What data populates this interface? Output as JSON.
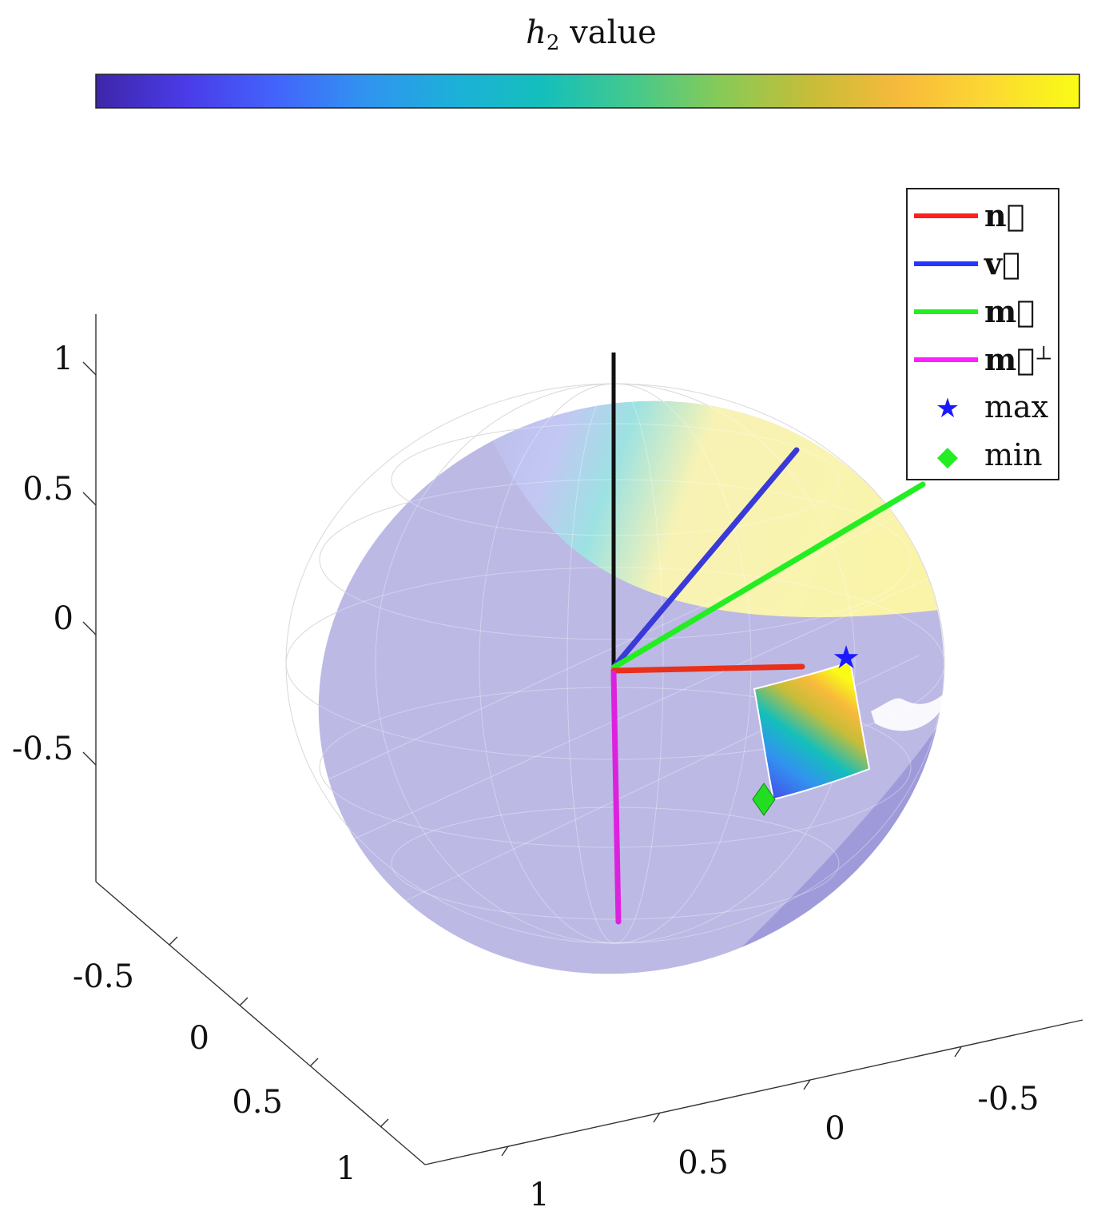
{
  "colorbar": {
    "title_var": "h",
    "title_sub": "2",
    "title_rest": " value",
    "colormap": [
      "#3e26a8",
      "#4a3be8",
      "#4363fc",
      "#3193f0",
      "#1cb0d9",
      "#14bfbb",
      "#44c98d",
      "#88ca56",
      "#c7bd38",
      "#f8ba3c",
      "#fcd932",
      "#f9fb15"
    ]
  },
  "legend": {
    "items": [
      {
        "label": "n⃗",
        "color": "#ff2020",
        "kind": "line",
        "bold": true,
        "sup": ""
      },
      {
        "label": "v⃗",
        "color": "#2536ff",
        "kind": "line",
        "bold": true,
        "sup": ""
      },
      {
        "label": "m⃗",
        "color": "#22ee22",
        "kind": "line",
        "bold": true,
        "sup": ""
      },
      {
        "label": "m⃗",
        "color": "#ff20ff",
        "kind": "line",
        "bold": true,
        "sup": "⊥"
      },
      {
        "label": "max",
        "color": "#1a1aff",
        "kind": "star",
        "bold": false,
        "sup": ""
      },
      {
        "label": "min",
        "color": "#22ee22",
        "kind": "diamond",
        "bold": false,
        "sup": ""
      }
    ]
  },
  "axes": {
    "z_ticks": [
      "1",
      "0.5",
      "0",
      "-0.5"
    ],
    "x_ticks": [
      "-0.5",
      "0",
      "0.5",
      "1"
    ],
    "y_ticks": [
      "1",
      "0.5",
      "0",
      "-0.5"
    ]
  },
  "chart_data": {
    "type": "surface",
    "title": "",
    "zlim": [
      -1,
      1
    ],
    "series": [
      {
        "vector": "n",
        "tip": [
          1,
          0,
          0
        ]
      },
      {
        "vector": "v",
        "tip": [
          0,
          0.6,
          0.6
        ]
      },
      {
        "vector": "m",
        "tip": [
          0,
          0.95,
          0.35
        ]
      },
      {
        "vector": "m_perp",
        "tip": [
          0,
          0,
          -1
        ]
      }
    ],
    "markers": [
      {
        "name": "max",
        "shape": "star"
      },
      {
        "name": "min",
        "shape": "diamond"
      }
    ],
    "grid": true
  }
}
